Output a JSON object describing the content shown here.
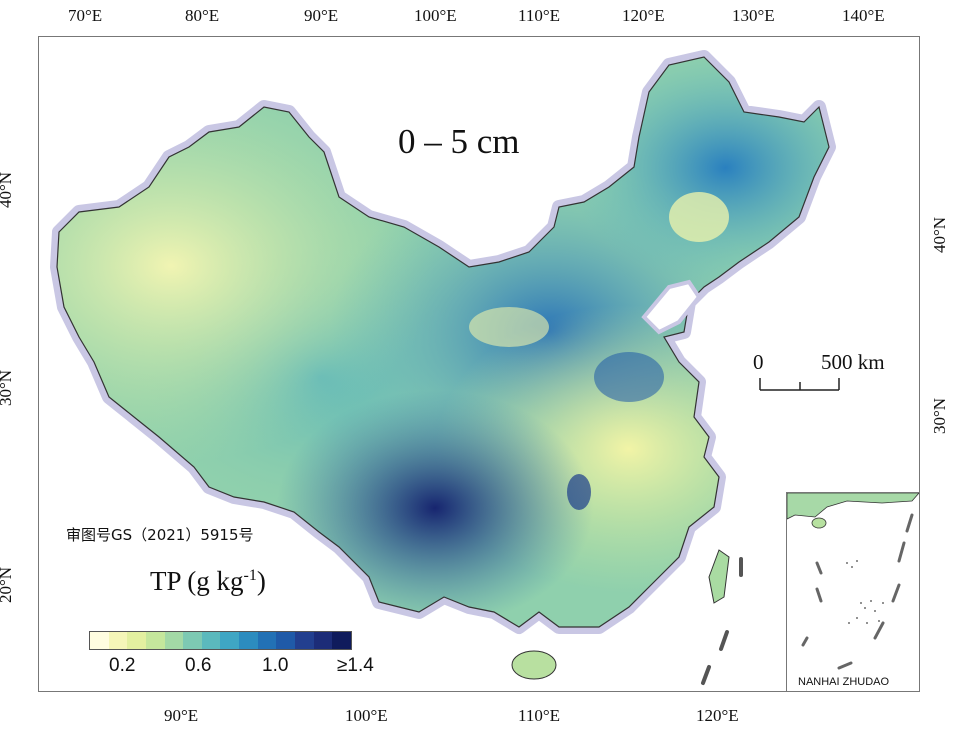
{
  "map": {
    "depth_label": "0 – 5 cm",
    "license_text": "审图号GS（2021）5915号",
    "legend_title": "TP (g kg",
    "legend_title_sup": "-1",
    "legend_title_close": ")",
    "legend_labels": [
      "0.2",
      "0.6",
      "1.0",
      "≥1.4"
    ],
    "legend_colors": [
      "#fffde0",
      "#f5f6b8",
      "#e3f0a0",
      "#c5e79c",
      "#a3d9a6",
      "#7dc9b3",
      "#5bb9bd",
      "#3fa6c4",
      "#2c8cbf",
      "#2271b5",
      "#1f5aa8",
      "#223f8f",
      "#1c2c78",
      "#0f1b5c"
    ],
    "scalebar": {
      "start": "0",
      "end": "500 km"
    },
    "inset_label": "NANHAI ZHUDAO",
    "top_ticks": [
      "70°E",
      "80°E",
      "90°E",
      "100°E",
      "110°E",
      "120°E",
      "130°E",
      "140°E"
    ],
    "bottom_ticks": [
      "90°E",
      "100°E",
      "110°E",
      "120°E"
    ],
    "left_ticks": [
      "40°N",
      "30°N",
      "20°N"
    ],
    "right_ticks": [
      "40°N",
      "30°N"
    ]
  }
}
